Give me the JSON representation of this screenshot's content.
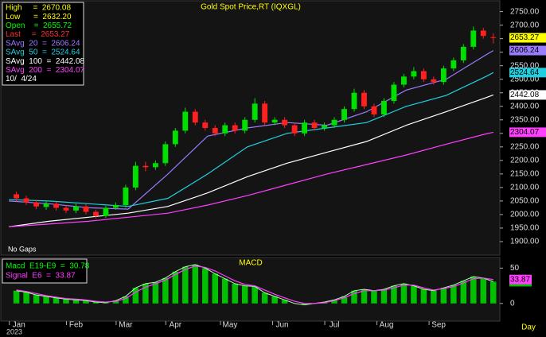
{
  "chart_data": {
    "type": "candlestick",
    "title": "Gold Spot Price,RT (IQXGL)",
    "annotation": "No Gaps",
    "up_color": "#00e000",
    "down_color": "#ff2020",
    "x": [
      3,
      7,
      11,
      15,
      19,
      23,
      27,
      31,
      35,
      39,
      43,
      47,
      51,
      55,
      59,
      63,
      67,
      71,
      75,
      79,
      83,
      87,
      91,
      95,
      99,
      103,
      107,
      111,
      115,
      119,
      123,
      127,
      131,
      135,
      139,
      143,
      147,
      151,
      155,
      159,
      163,
      167,
      171,
      175,
      179,
      183,
      187,
      191,
      195
    ],
    "open": [
      2075,
      2060,
      2045,
      2028,
      2040,
      2025,
      2015,
      2030,
      2010,
      1995,
      2025,
      2035,
      2100,
      2180,
      2175,
      2190,
      2260,
      2310,
      2380,
      2340,
      2320,
      2300,
      2330,
      2310,
      2350,
      2410,
      2340,
      2350,
      2330,
      2300,
      2340,
      2320,
      2330,
      2350,
      2390,
      2450,
      2400,
      2370,
      2420,
      2480,
      2510,
      2530,
      2500,
      2490,
      2540,
      2570,
      2620,
      2680,
      2655.72
    ],
    "high": [
      2085,
      2070,
      2055,
      2050,
      2048,
      2035,
      2040,
      2038,
      2018,
      2032,
      2045,
      2110,
      2195,
      2195,
      2200,
      2270,
      2320,
      2395,
      2390,
      2350,
      2330,
      2340,
      2340,
      2360,
      2430,
      2420,
      2360,
      2360,
      2340,
      2350,
      2350,
      2340,
      2360,
      2400,
      2465,
      2460,
      2410,
      2430,
      2490,
      2520,
      2545,
      2540,
      2510,
      2550,
      2580,
      2630,
      2695,
      2690,
      2670.08
    ],
    "low": [
      2050,
      2035,
      2020,
      2018,
      2015,
      2005,
      2005,
      2000,
      1985,
      1988,
      2018,
      2025,
      2090,
      2160,
      2165,
      2180,
      2250,
      2300,
      2330,
      2310,
      2290,
      2290,
      2300,
      2300,
      2340,
      2330,
      2330,
      2320,
      2290,
      2290,
      2310,
      2310,
      2320,
      2340,
      2380,
      2390,
      2360,
      2360,
      2410,
      2470,
      2500,
      2490,
      2480,
      2480,
      2530,
      2560,
      2610,
      2650,
      2632.2
    ],
    "close": [
      2060,
      2045,
      2030,
      2040,
      2025,
      2015,
      2030,
      2010,
      1995,
      2025,
      2035,
      2100,
      2180,
      2175,
      2190,
      2260,
      2310,
      2380,
      2340,
      2320,
      2300,
      2330,
      2310,
      2350,
      2410,
      2340,
      2350,
      2330,
      2300,
      2340,
      2320,
      2330,
      2350,
      2390,
      2450,
      2400,
      2370,
      2420,
      2480,
      2510,
      2530,
      2500,
      2490,
      2540,
      2570,
      2620,
      2680,
      2660,
      2653.27
    ],
    "last_color": "#ffff00",
    "overlays": [
      {
        "color": "#9a7cff",
        "x": [
          0,
          16,
          32,
          48,
          64,
          80,
          96,
          112,
          128,
          144,
          160,
          176,
          192,
          195
        ],
        "values": [
          2050,
          2040,
          2025,
          2020,
          2150,
          2290,
          2320,
          2340,
          2330,
          2380,
          2460,
          2500,
          2590,
          2606.24
        ]
      },
      {
        "color": "#20d0e0",
        "x": [
          0,
          16,
          32,
          48,
          64,
          80,
          96,
          112,
          128,
          144,
          160,
          176,
          192,
          195
        ],
        "values": [
          2055,
          2050,
          2040,
          2030,
          2060,
          2150,
          2250,
          2300,
          2320,
          2340,
          2400,
          2440,
          2510,
          2524.64
        ]
      },
      {
        "color": "#ffffff",
        "x": [
          0,
          16,
          32,
          48,
          64,
          80,
          96,
          112,
          128,
          144,
          160,
          176,
          192,
          195
        ],
        "values": [
          1955,
          1975,
          1990,
          2005,
          2030,
          2080,
          2140,
          2190,
          2230,
          2270,
          2330,
          2380,
          2432,
          2442.08
        ]
      },
      {
        "color": "#ff40ff",
        "x": [
          0,
          16,
          32,
          48,
          64,
          80,
          96,
          112,
          128,
          144,
          160,
          176,
          192,
          195
        ],
        "values": [
          1955,
          1965,
          1975,
          1990,
          2005,
          2035,
          2070,
          2110,
          2150,
          2185,
          2220,
          2260,
          2298,
          2304.07
        ]
      }
    ],
    "xlim": [
      -2,
      197
    ],
    "xticks": [
      {
        "value": 4,
        "label": "Jan"
      },
      {
        "value": 27,
        "label": "Feb"
      },
      {
        "value": 47,
        "label": "Mar"
      },
      {
        "value": 67,
        "label": "Apr"
      },
      {
        "value": 89,
        "label": "May"
      },
      {
        "value": 110,
        "label": "Jun"
      },
      {
        "value": 131,
        "label": "Jul"
      },
      {
        "value": 152,
        "label": "Aug"
      },
      {
        "value": 173,
        "label": "Sep"
      }
    ],
    "x_year_label": "2023",
    "x_unit_label": "Day",
    "ylim": [
      1850,
      2790
    ],
    "yticks": [
      {
        "value": 1900,
        "label": "1900.00"
      },
      {
        "value": 1950,
        "label": "1950.00"
      },
      {
        "value": 2000,
        "label": "2000.00"
      },
      {
        "value": 2050,
        "label": "2050.00"
      },
      {
        "value": 2100,
        "label": "2100.00"
      },
      {
        "value": 2150,
        "label": "2150.00"
      },
      {
        "value": 2200,
        "label": "2200.00"
      },
      {
        "value": 2250,
        "label": "2250.00"
      },
      {
        "value": 2300,
        "label": "2300.00"
      },
      {
        "value": 2350,
        "label": "2350.00"
      },
      {
        "value": 2400,
        "label": "2400.00"
      },
      {
        "value": 2450,
        "label": "2450.00"
      },
      {
        "value": 2500,
        "label": "2500.00"
      },
      {
        "value": 2550,
        "label": "2550.00"
      },
      {
        "value": 2600,
        "label": "2600.00"
      },
      {
        "value": 2650,
        "label": "2650.00"
      },
      {
        "value": 2700,
        "label": "2700.00"
      },
      {
        "value": 2750,
        "label": "2750.00"
      }
    ],
    "legend_lines": [
      {
        "text": "High     =  2670.08",
        "color": "#ffff00"
      },
      {
        "text": "Low      =  2632.20",
        "color": "#ffff00"
      },
      {
        "text": "Open    =  2655.72",
        "color": "#00ff00"
      },
      {
        "text": "Last     =  2653.27",
        "color": "#ff3030"
      },
      {
        "text": "SAvg  20  =  2606.24",
        "color": "#9a7cff"
      },
      {
        "text": "SAvg  50  =  2524.64",
        "color": "#20d0e0"
      },
      {
        "text": "SAvg  100  =  2442.08",
        "color": "#ffffff"
      },
      {
        "text": "SAvg  200  =  2304.07",
        "color": "#ff40ff"
      },
      {
        "text": "10/  4/24",
        "color": "#ffffff"
      }
    ],
    "macd": {
      "type": "bar",
      "title": "MACD",
      "x": [
        3,
        7,
        11,
        15,
        19,
        23,
        27,
        31,
        35,
        39,
        43,
        47,
        51,
        55,
        59,
        63,
        67,
        71,
        75,
        79,
        83,
        87,
        91,
        95,
        99,
        103,
        107,
        111,
        115,
        119,
        123,
        127,
        131,
        135,
        139,
        143,
        147,
        151,
        155,
        159,
        163,
        167,
        171,
        175,
        179,
        183,
        187,
        191,
        195
      ],
      "series": [
        {
          "color": "#00c000",
          "values": [
            18,
            16,
            12,
            10,
            8,
            6,
            5,
            4,
            2,
            1,
            4,
            10,
            22,
            28,
            30,
            36,
            45,
            52,
            55,
            50,
            42,
            35,
            28,
            25,
            24,
            15,
            10,
            5,
            0,
            -2,
            0,
            2,
            5,
            10,
            18,
            20,
            18,
            20,
            25,
            28,
            25,
            20,
            18,
            22,
            26,
            32,
            38,
            36,
            30.78
          ]
        },
        {
          "color": "#ff40ff",
          "values": [
            19,
            17,
            14,
            11,
            9,
            7,
            6,
            5,
            3,
            2,
            3,
            7,
            16,
            23,
            28,
            33,
            41,
            48,
            53,
            51,
            46,
            39,
            32,
            27,
            25,
            19,
            13,
            8,
            3,
            0,
            0,
            1,
            4,
            8,
            14,
            18,
            18,
            19,
            22,
            26,
            26,
            22,
            19,
            21,
            24,
            29,
            35,
            36,
            33.87
          ]
        }
      ],
      "ylim": [
        -25,
        65
      ],
      "yticks": [
        0,
        50
      ],
      "legend_lines": [
        {
          "text": "Macd  E19-E9  =  30.78",
          "color": "#00ff00"
        },
        {
          "text": "Signal  E6  =  33.87",
          "color": "#ff40ff"
        }
      ]
    }
  }
}
